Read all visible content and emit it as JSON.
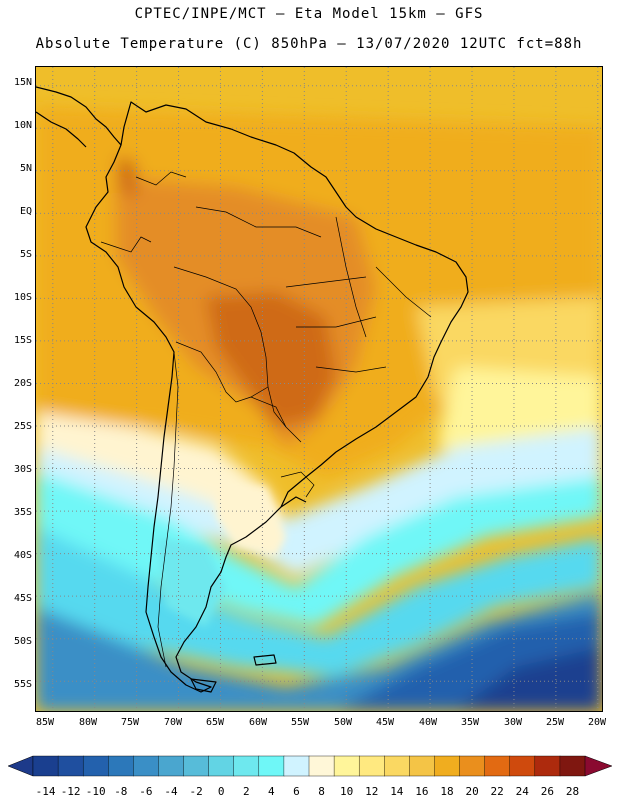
{
  "header": {
    "line1": "CPTEC/INPE/MCT –  Eta Model 15km – GFS",
    "line2": "Absolute Temperature (C) 850hPa – 13/07/2020 12UTC fct=88h"
  },
  "axes": {
    "lat_labels": [
      "15N",
      "10N",
      "5N",
      "EQ",
      "5S",
      "10S",
      "15S",
      "20S",
      "25S",
      "30S",
      "35S",
      "40S",
      "45S",
      "50S",
      "55S"
    ],
    "lon_labels": [
      "85W",
      "80W",
      "75W",
      "70W",
      "65W",
      "60W",
      "55W",
      "50W",
      "45W",
      "40W",
      "35W",
      "30W",
      "25W",
      "20W"
    ],
    "lat_values": [
      15,
      10,
      5,
      0,
      -5,
      -10,
      -15,
      -20,
      -25,
      -30,
      -35,
      -40,
      -45,
      -50,
      -55
    ],
    "lon_values": [
      -85,
      -80,
      -75,
      -70,
      -65,
      -60,
      -55,
      -50,
      -45,
      -40,
      -35,
      -30,
      -25,
      -20
    ]
  },
  "colorbar": {
    "tick_labels": [
      "-14",
      "-12",
      "-10",
      "-8",
      "-6",
      "-4",
      "-2",
      "0",
      "2",
      "4",
      "6",
      "8",
      "10",
      "12",
      "14",
      "16",
      "18",
      "20",
      "22",
      "24",
      "26",
      "28"
    ],
    "colors": [
      "#1a3f8f",
      "#1f4f9f",
      "#2361ad",
      "#2c78ba",
      "#3a8fc6",
      "#4aa6cf",
      "#57bcd9",
      "#62d4e4",
      "#6ee8ee",
      "#6ff7f7",
      "#d0f3ff",
      "#fff7d8",
      "#fff59a",
      "#ffe980",
      "#fad862",
      "#f4c446",
      "#f0ad1f",
      "#ea8f1d",
      "#e26a12",
      "#cf4a0d",
      "#ad2a0d",
      "#7f1710"
    ],
    "low_end_color": "#1d3a8a",
    "high_end_color": "#8a0a30"
  },
  "map_colors": {
    "ocean_north": "#efbe2a",
    "ocean_warm": "#f0ad1f",
    "land_hot": "#e48d25",
    "land_hottest": "#cf5a15",
    "cream": "#fff4d0",
    "pale_yellow": "#fff59a",
    "pale_blue": "#d0f3ff",
    "cyan": "#6ff7f7",
    "cyan2": "#57d9ef",
    "mid_blue": "#3a8fc6",
    "deep_blue": "#2361ad",
    "darkest_blue": "#1a3f8f",
    "border": "#000000"
  }
}
